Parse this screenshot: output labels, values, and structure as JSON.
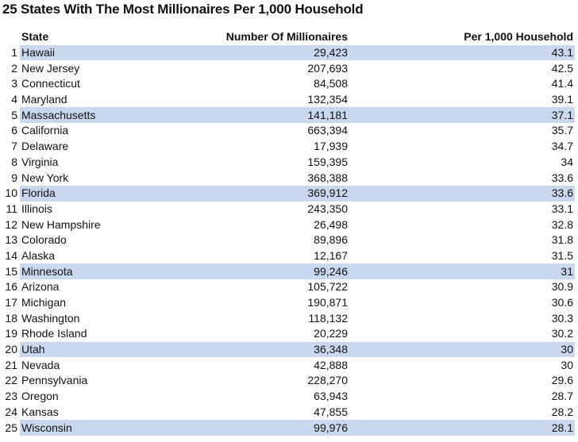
{
  "title": "25 States With The Most Millionaires Per 1,000 Household",
  "table": {
    "headers": {
      "rank": "",
      "state": "State",
      "millionaires": "Number Of Millionaires",
      "per_1000": "Per 1,000 Household"
    },
    "rows": [
      {
        "rank": "1",
        "state": "Hawaii",
        "millionaires": "29,423",
        "per_1000": "43.1",
        "highlight": true
      },
      {
        "rank": "2",
        "state": "New Jersey",
        "millionaires": "207,693",
        "per_1000": "42.5",
        "highlight": false
      },
      {
        "rank": "3",
        "state": "Connecticut",
        "millionaires": "84,508",
        "per_1000": "41.4",
        "highlight": false
      },
      {
        "rank": "4",
        "state": "Maryland",
        "millionaires": "132,354",
        "per_1000": "39.1",
        "highlight": false
      },
      {
        "rank": "5",
        "state": "Massachusetts",
        "millionaires": "141,181",
        "per_1000": "37.1",
        "highlight": true
      },
      {
        "rank": "6",
        "state": "California",
        "millionaires": "663,394",
        "per_1000": "35.7",
        "highlight": false
      },
      {
        "rank": "7",
        "state": "Delaware",
        "millionaires": "17,939",
        "per_1000": "34.7",
        "highlight": false
      },
      {
        "rank": "8",
        "state": "Virginia",
        "millionaires": "159,395",
        "per_1000": "34",
        "highlight": false
      },
      {
        "rank": "9",
        "state": "New York",
        "millionaires": "368,388",
        "per_1000": "33.6",
        "highlight": false
      },
      {
        "rank": "10",
        "state": "Florida",
        "millionaires": "369,912",
        "per_1000": "33.6",
        "highlight": true
      },
      {
        "rank": "11",
        "state": "Illinois",
        "millionaires": "243,350",
        "per_1000": "33.1",
        "highlight": false
      },
      {
        "rank": "12",
        "state": "New Hampshire",
        "millionaires": "26,498",
        "per_1000": "32.8",
        "highlight": false
      },
      {
        "rank": "13",
        "state": "Colorado",
        "millionaires": "89,896",
        "per_1000": "31.8",
        "highlight": false
      },
      {
        "rank": "14",
        "state": "Alaska",
        "millionaires": "12,167",
        "per_1000": "31.5",
        "highlight": false
      },
      {
        "rank": "15",
        "state": "Minnesota",
        "millionaires": "99,246",
        "per_1000": "31",
        "highlight": true
      },
      {
        "rank": "16",
        "state": "Arizona",
        "millionaires": "105,722",
        "per_1000": "30.9",
        "highlight": false
      },
      {
        "rank": "17",
        "state": "Michigan",
        "millionaires": "190,871",
        "per_1000": "30.6",
        "highlight": false
      },
      {
        "rank": "18",
        "state": "Washington",
        "millionaires": "118,132",
        "per_1000": "30.3",
        "highlight": false
      },
      {
        "rank": "19",
        "state": "Rhode Island",
        "millionaires": "20,229",
        "per_1000": "30.2",
        "highlight": false
      },
      {
        "rank": "20",
        "state": "Utah",
        "millionaires": "36,348",
        "per_1000": "30",
        "highlight": true
      },
      {
        "rank": "21",
        "state": "Nevada",
        "millionaires": "42,888",
        "per_1000": "30",
        "highlight": false
      },
      {
        "rank": "22",
        "state": "Pennsylvania",
        "millionaires": "228,270",
        "per_1000": "29.6",
        "highlight": false
      },
      {
        "rank": "23",
        "state": "Oregon",
        "millionaires": "63,943",
        "per_1000": "28.7",
        "highlight": false
      },
      {
        "rank": "24",
        "state": "Kansas",
        "millionaires": "47,855",
        "per_1000": "28.2",
        "highlight": false
      },
      {
        "rank": "25",
        "state": "Wisconsin",
        "millionaires": "99,976",
        "per_1000": "28.1",
        "highlight": true
      }
    ]
  },
  "colors": {
    "highlight_row": "#c9d8ee",
    "text": "#111111"
  }
}
